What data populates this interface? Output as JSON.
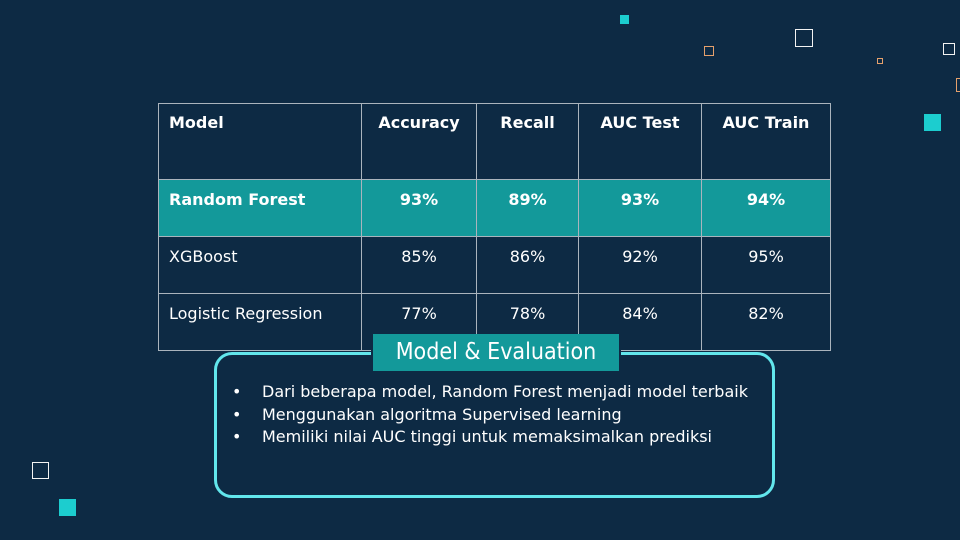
{
  "table": {
    "headers": [
      "Model",
      "Accuracy",
      "Recall",
      "AUC Test",
      "AUC Train"
    ],
    "rows": [
      {
        "model": "Random Forest",
        "accuracy": "93%",
        "recall": "89%",
        "auc_test": "93%",
        "auc_train": "94%",
        "highlighted": true
      },
      {
        "model": "XGBoost",
        "accuracy": "85%",
        "recall": "86%",
        "auc_test": "92%",
        "auc_train": "95%",
        "highlighted": false
      },
      {
        "model": "Logistic Regression",
        "accuracy": "77%",
        "recall": "78%",
        "auc_test": "84%",
        "auc_train": "82%",
        "highlighted": false
      }
    ]
  },
  "evaluation": {
    "title": "Model & Evaluation",
    "bullet_symbol": "•",
    "points": [
      "Dari beberapa model, Random Forest menjadi model terbaik",
      "Menggunakan algoritma Supervised learning",
      "Memiliki nilai AUC tinggi untuk memaksimalkan prediksi"
    ]
  },
  "colors": {
    "background": "#0d2a44",
    "accent_teal": "#13999a",
    "box_border": "#62e6ec",
    "deco_teal": "#1ccdcf",
    "deco_orange": "#e4a06c"
  }
}
